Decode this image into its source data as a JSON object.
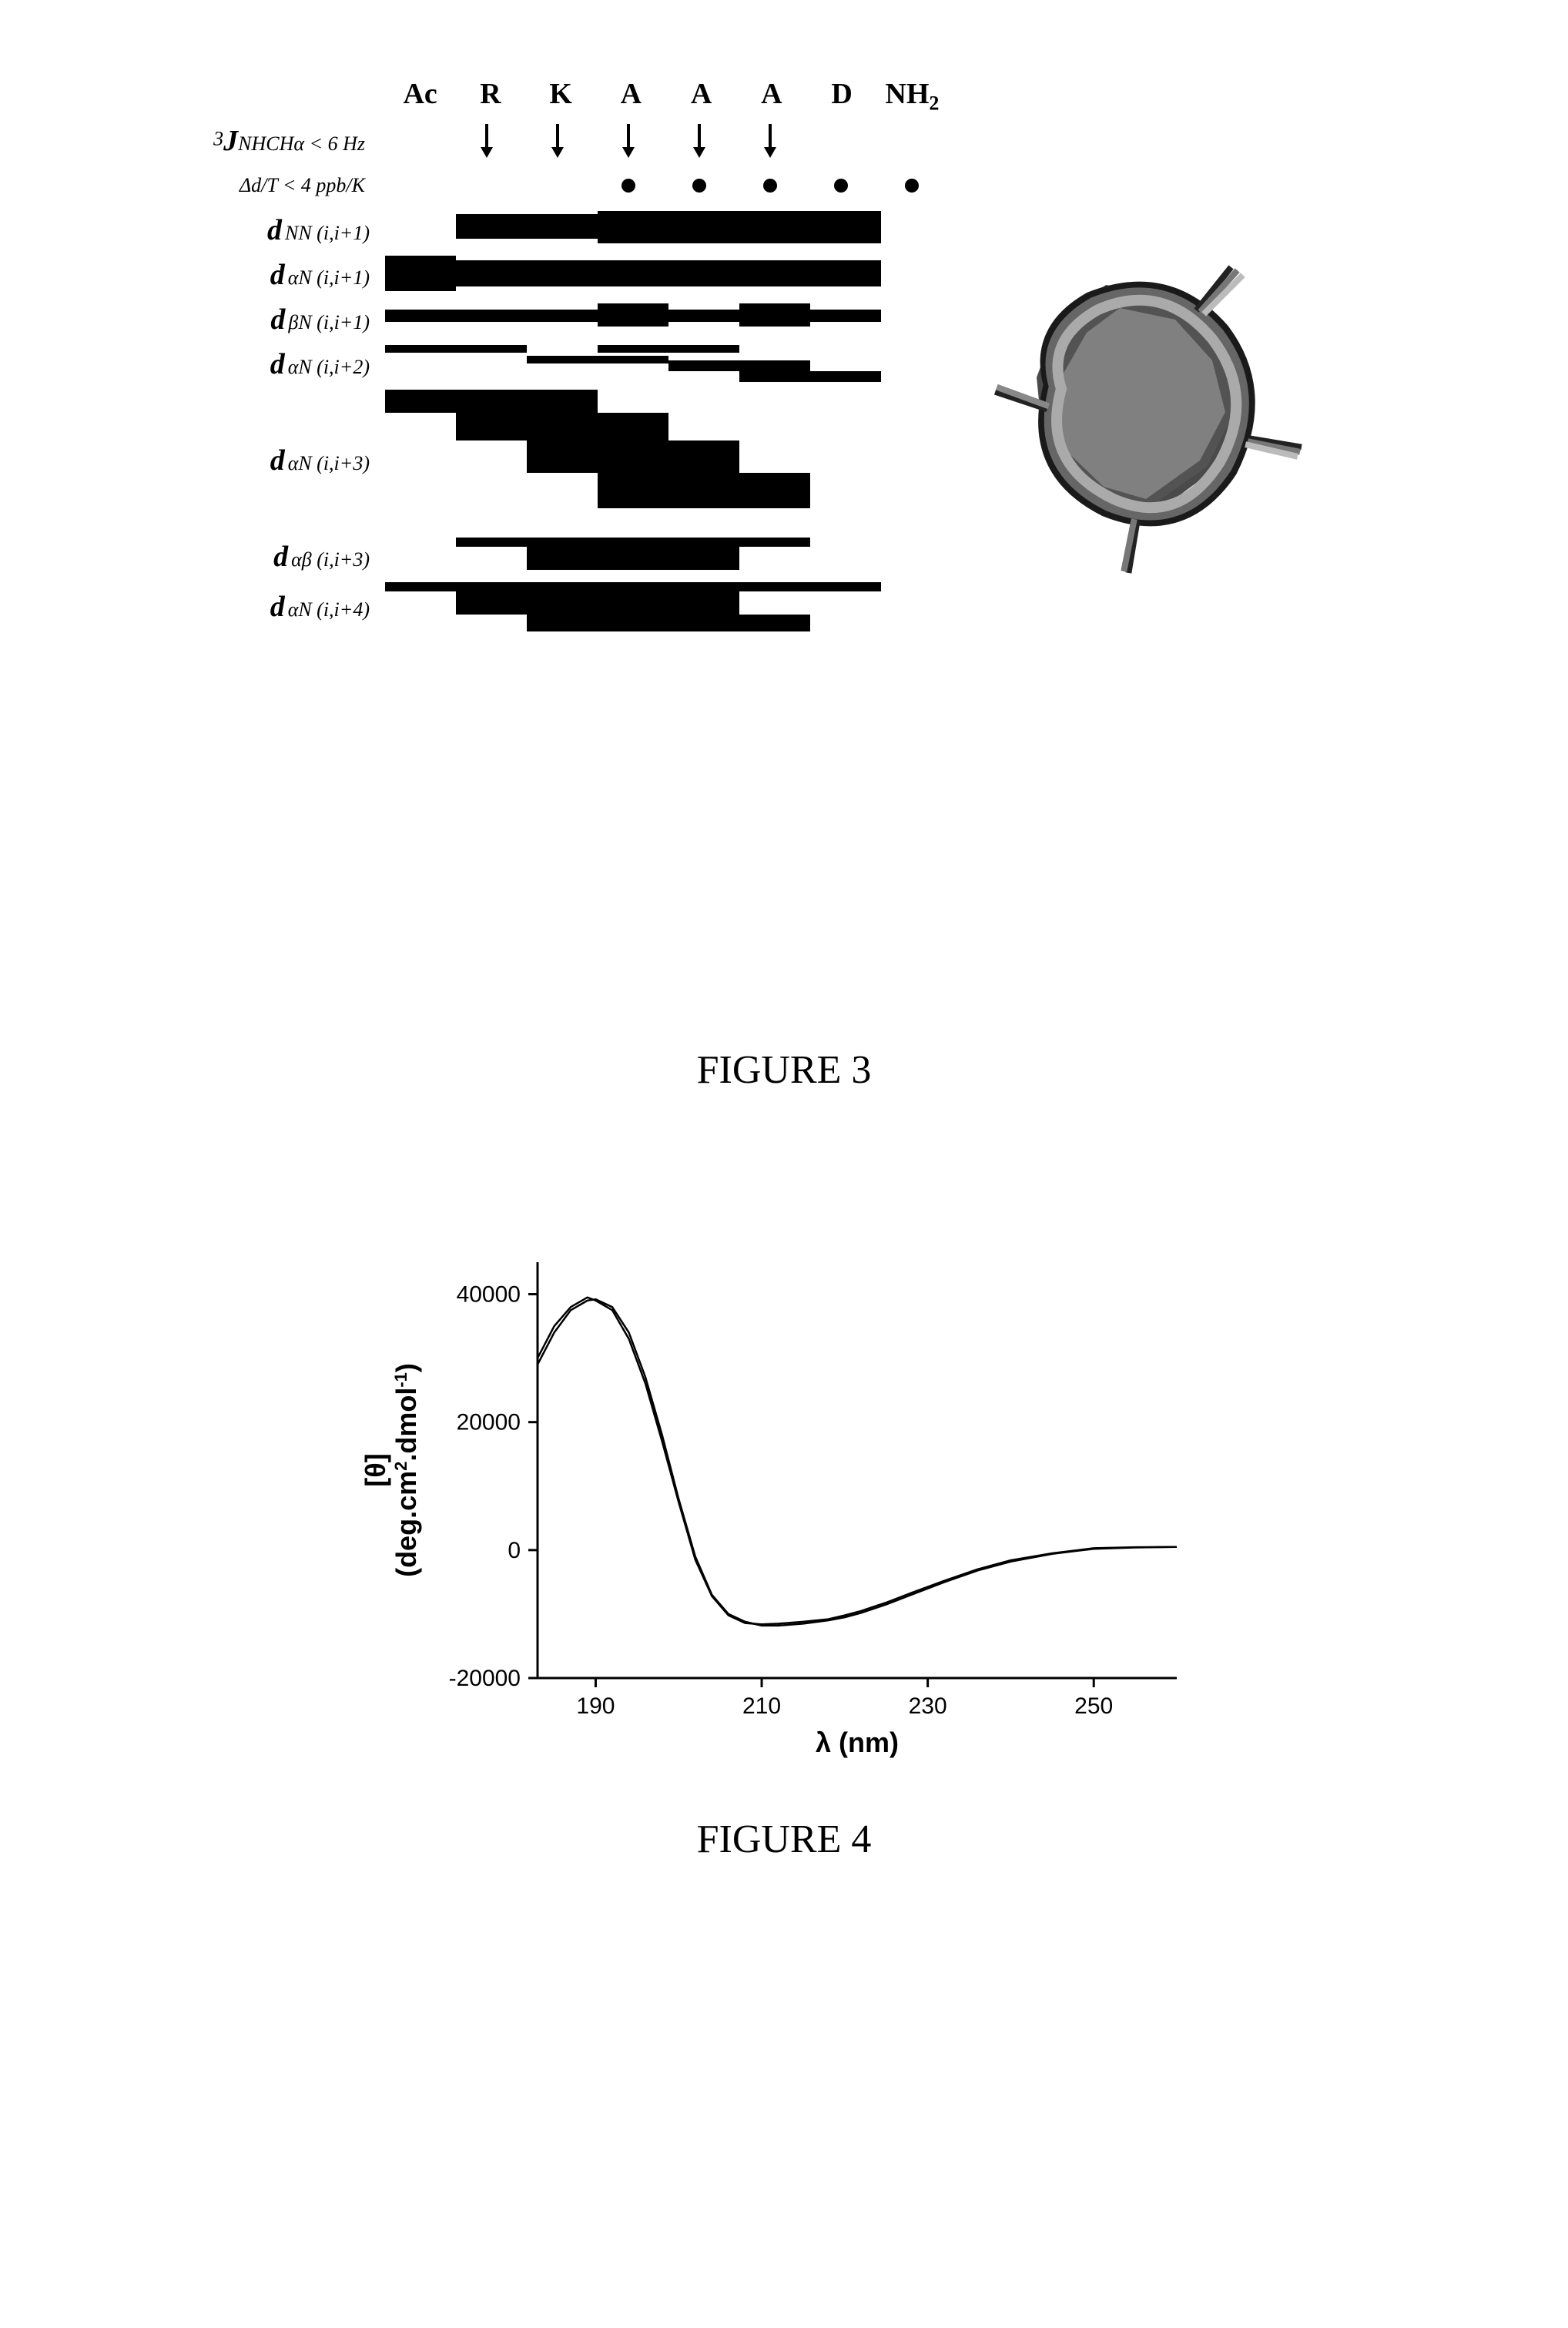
{
  "figure3": {
    "caption": "FIGURE 3",
    "residues": [
      "Ac",
      "R",
      "K",
      "A",
      "A",
      "A",
      "D",
      "NH₂"
    ],
    "j_coupling": {
      "label_html": "<span class='row-label-sup'>3</span><span class='row-label-main'>J</span><span class='row-label-sub'>NHCHα</span><span class='row-label-sub'> &lt; 6 Hz</span>",
      "arrows": [
        false,
        true,
        true,
        true,
        true,
        true,
        false,
        false
      ]
    },
    "temp_coeff": {
      "label_html": "<span class='row-label-sub'>Δd/T &lt; 4 ppb/K</span>",
      "dots": [
        false,
        false,
        false,
        true,
        true,
        true,
        true,
        true
      ]
    },
    "noe_rows": [
      {
        "label_html": "<span class='row-label-main'>d</span> <span class='row-label-sub'>NN (i,i+1)</span>",
        "segments": [
          {
            "start": 1,
            "end": 3,
            "thickness": 32,
            "voffset": 4
          },
          {
            "start": 3,
            "end": 7,
            "thickness": 42,
            "voffset": 0
          }
        ]
      },
      {
        "label_html": "<span class='row-label-main'>d</span> <span class='row-label-sub'>αN (i,i+1)</span>",
        "segments": [
          {
            "start": 0,
            "end": 1,
            "thickness": 46,
            "voffset": 0
          },
          {
            "start": 1,
            "end": 7,
            "thickness": 34,
            "voffset": 6
          }
        ]
      },
      {
        "label_html": "<span class='row-label-main'>d</span> <span class='row-label-sub'>βN (i,i+1)</span>",
        "segments": [
          {
            "start": 0,
            "end": 3,
            "thickness": 16,
            "voffset": 12
          },
          {
            "start": 3,
            "end": 4,
            "thickness": 30,
            "voffset": 4
          },
          {
            "start": 4,
            "end": 5,
            "thickness": 16,
            "voffset": 12
          },
          {
            "start": 5,
            "end": 6,
            "thickness": 30,
            "voffset": 4
          },
          {
            "start": 6,
            "end": 7,
            "thickness": 16,
            "voffset": 12
          }
        ]
      },
      {
        "label_html": "<span class='row-label-main'>d</span> <span class='row-label-sub'>αN (i,i+2)</span>",
        "segments": [
          {
            "start": 0,
            "end": 2,
            "thickness": 10,
            "voffset": 0
          },
          {
            "start": 2,
            "end": 4,
            "thickness": 10,
            "voffset": 14
          },
          {
            "start": 3,
            "end": 5,
            "thickness": 10,
            "voffset": 0
          },
          {
            "start": 4,
            "end": 6,
            "thickness": 14,
            "voffset": 20
          },
          {
            "start": 5,
            "end": 7,
            "thickness": 14,
            "voffset": 34
          }
        ]
      },
      {
        "label_html": "<span class='row-label-main'>d</span> <span class='row-label-sub'>αN (i,i+3)</span>",
        "segments": [
          {
            "start": 0,
            "end": 3,
            "thickness": 30,
            "voffset": 0
          },
          {
            "start": 1,
            "end": 4,
            "thickness": 36,
            "voffset": 30
          },
          {
            "start": 2,
            "end": 5,
            "thickness": 42,
            "voffset": 66
          },
          {
            "start": 3,
            "end": 6,
            "thickness": 46,
            "voffset": 108
          }
        ]
      },
      {
        "label_html": "<span class='row-label-main'>d</span> <span class='row-label-sub'>αβ (i,i+3)</span>",
        "segments": [
          {
            "start": 1,
            "end": 4,
            "thickness": 12,
            "voffset": 0
          },
          {
            "start": 2,
            "end": 5,
            "thickness": 30,
            "voffset": 12
          },
          {
            "start": 3,
            "end": 6,
            "thickness": 12,
            "voffset": 0
          }
        ]
      },
      {
        "label_html": "<span class='row-label-main'>d</span> <span class='row-label-sub'>αN (i,i+4)</span>",
        "segments": [
          {
            "start": 0,
            "end": 4,
            "thickness": 12,
            "voffset": 0
          },
          {
            "start": 1,
            "end": 5,
            "thickness": 30,
            "voffset": 12
          },
          {
            "start": 2,
            "end": 6,
            "thickness": 22,
            "voffset": 42
          },
          {
            "start": 3,
            "end": 7,
            "thickness": 12,
            "voffset": 0
          }
        ]
      }
    ],
    "structure": {
      "bg_color": "#ffffff"
    }
  },
  "figure4": {
    "caption": "FIGURE 4",
    "chart": {
      "type": "line",
      "xlabel": "λ (nm)",
      "ylabel_html": "[θ]<br>(deg.cm<sup>2</sup>.dmol<sup>-1</sup>)",
      "xlim": [
        183,
        260
      ],
      "ylim": [
        -20000,
        45000
      ],
      "xticks": [
        190,
        210,
        230,
        250
      ],
      "yticks": [
        -20000,
        0,
        20000,
        40000
      ],
      "ytick_labels": [
        "-20000",
        "0",
        "20000",
        "40000"
      ],
      "line_color": "#000000",
      "line_width": 2.5,
      "axis_color": "#000000",
      "axis_width": 3,
      "tick_length": 12,
      "label_fontsize": 36,
      "tick_fontsize": 30,
      "series1": {
        "x": [
          183,
          185,
          187,
          189,
          190,
          192,
          194,
          196,
          198,
          200,
          202,
          204,
          206,
          208,
          210,
          212,
          215,
          218,
          220,
          222,
          225,
          228,
          232,
          236,
          240,
          245,
          250,
          255,
          260
        ],
        "y": [
          29000,
          34000,
          37500,
          39000,
          39200,
          38000,
          34000,
          27000,
          18000,
          8000,
          -1000,
          -7000,
          -10000,
          -11200,
          -11800,
          -11800,
          -11500,
          -11000,
          -10500,
          -9800,
          -8500,
          -7000,
          -5000,
          -3200,
          -1800,
          -600,
          200,
          400,
          500
        ]
      },
      "series2": {
        "x": [
          183,
          185,
          187,
          189,
          190,
          192,
          194,
          196,
          198,
          200,
          202,
          204,
          206,
          208,
          210,
          212,
          215,
          218,
          220,
          222,
          225,
          228,
          232,
          236,
          240,
          245,
          250,
          255,
          260
        ],
        "y": [
          30000,
          35000,
          38000,
          39500,
          39000,
          37500,
          33000,
          26000,
          17000,
          7500,
          -1500,
          -7200,
          -10200,
          -11400,
          -11600,
          -11500,
          -11200,
          -10800,
          -10200,
          -9500,
          -8200,
          -6700,
          -4800,
          -3000,
          -1600,
          -500,
          300,
          450,
          500
        ]
      }
    }
  }
}
